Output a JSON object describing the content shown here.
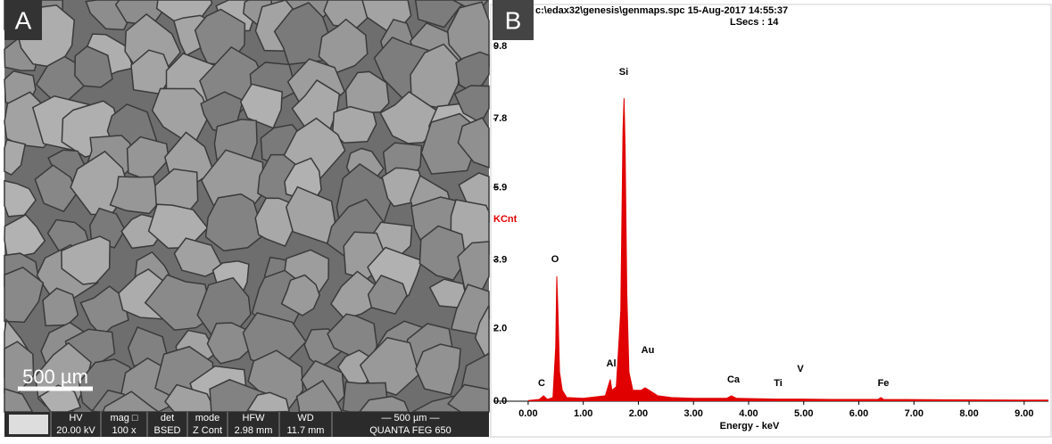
{
  "panels": [
    {
      "label": "A"
    },
    {
      "label": "B"
    }
  ],
  "sem": {
    "scale_bar": "500 µm",
    "info": [
      {
        "label": "HV",
        "value": "20.00 kV"
      },
      {
        "label": "mag □",
        "value": "100 x"
      },
      {
        "label": "det",
        "value": "BSED"
      },
      {
        "label": "mode",
        "value": "Z Cont"
      },
      {
        "label": "HFW",
        "value": "2.98 mm"
      },
      {
        "label": "WD",
        "value": "11.7 mm"
      },
      {
        "label": "— 500 µm —",
        "value": "QUANTA FEG 650"
      }
    ]
  },
  "chart_data": {
    "type": "area",
    "title": "c:\\edax32\\genesis\\genmaps.spc  15-Aug-2017 14:55:37",
    "subtitle": "LSecs : 14",
    "y_label": "KCnt",
    "x_label": "Energy - keV",
    "color": "#e00000",
    "xlim": [
      -0.63,
      9.44
    ],
    "ylim": [
      0,
      9.8
    ],
    "xticks": [
      {
        "value": 0,
        "label": "0.00"
      },
      {
        "value": 1,
        "label": "1.00"
      },
      {
        "value": 2,
        "label": "2.00"
      },
      {
        "value": 3,
        "label": "3.00"
      },
      {
        "value": 4,
        "label": "4.00"
      },
      {
        "value": 5,
        "label": "5.00"
      },
      {
        "value": 6,
        "label": "6.00"
      },
      {
        "value": 7,
        "label": "7.00"
      },
      {
        "value": 8,
        "label": "8.00"
      },
      {
        "value": 9,
        "label": "9.00"
      }
    ],
    "yticks": [
      {
        "value": 0,
        "label": "0.0"
      },
      {
        "value": 2,
        "label": "2.0"
      },
      3.9,
      5.9,
      7.8,
      9.8
    ],
    "x": [
      0.0,
      0.2,
      0.28,
      0.35,
      0.45,
      0.5,
      0.52,
      0.54,
      0.57,
      0.62,
      0.7,
      1.0,
      1.4,
      1.47,
      1.49,
      1.52,
      1.6,
      1.68,
      1.72,
      1.74,
      1.76,
      1.79,
      1.83,
      1.9,
      2.05,
      2.12,
      2.2,
      2.35,
      2.6,
      3.0,
      3.6,
      3.69,
      3.78,
      4.5,
      4.95,
      5.5,
      6.35,
      6.4,
      6.45,
      7.5,
      9.44
    ],
    "values": [
      0.02,
      0.05,
      0.15,
      0.05,
      0.1,
      1.5,
      3.45,
      2.5,
      0.8,
      0.3,
      0.1,
      0.08,
      0.15,
      0.5,
      0.6,
      0.3,
      0.4,
      2.5,
      7.5,
      8.37,
      7.0,
      3.0,
      0.8,
      0.3,
      0.3,
      0.37,
      0.3,
      0.15,
      0.1,
      0.08,
      0.08,
      0.15,
      0.08,
      0.06,
      0.06,
      0.05,
      0.05,
      0.1,
      0.05,
      0.04,
      0.03
    ],
    "annotations": [
      "C",
      "O",
      "Al",
      "Si",
      "Au",
      "Ca",
      "Ti",
      "V",
      "Fe"
    ]
  }
}
